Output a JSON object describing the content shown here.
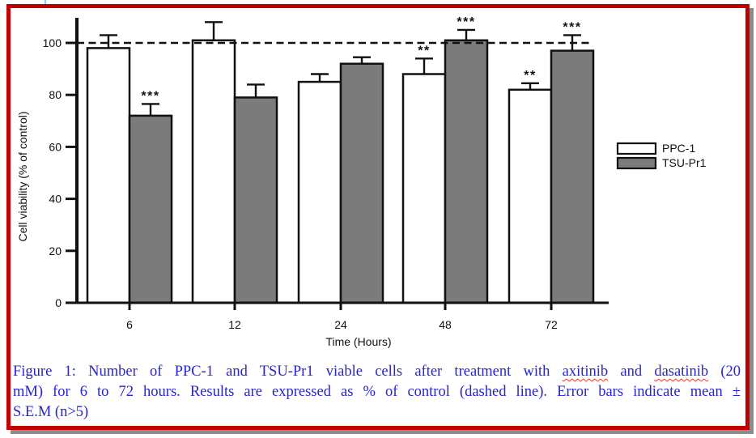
{
  "style": {
    "frame_color": "#c00000",
    "frame_shadow_color": "#8c8c8c",
    "caption_color": "#2824cf",
    "axis_color": "#111111",
    "bar_outline_color": "#111111",
    "ppc1_fill": "#ffffff",
    "tsu_pr1_fill": "#7b7b7b"
  },
  "chart_data": {
    "type": "bar",
    "title": "",
    "xlabel": "Time (Hours)",
    "ylabel": "Cell viability (% of control)",
    "ylim": [
      0,
      110
    ],
    "yticks": [
      0,
      20,
      40,
      60,
      80,
      100
    ],
    "grid": "off",
    "legend_position": "right",
    "categories": [
      "6",
      "12",
      "24",
      "48",
      "72"
    ],
    "series": [
      {
        "name": "PPC-1",
        "fill": "#ffffff",
        "values": [
          98,
          101,
          85,
          88,
          82
        ],
        "errors_upper_sem": [
          5,
          7,
          3,
          6,
          2.5
        ],
        "significance": [
          "",
          "",
          "",
          "**",
          "**"
        ]
      },
      {
        "name": "TSU-Pr1",
        "fill": "#7b7b7b",
        "values": [
          72,
          79,
          92,
          101,
          97
        ],
        "errors_upper_sem": [
          4.5,
          5,
          2.5,
          4,
          6
        ],
        "significance": [
          "***",
          "",
          "",
          "***",
          "***"
        ]
      }
    ],
    "reference_line": {
      "value": 100,
      "style": "dashed",
      "meaning": "control"
    }
  },
  "caption": {
    "figure_label": "Figure 1",
    "line1": {
      "pre": "Figure 1: Number of PPC-1 and TSU-Pr1 viable cells after treatment with ",
      "word1": "axitinib",
      "mid": " and ",
      "word2": "dasatinib",
      "post": " (20"
    },
    "line2": "mM) for 6 to 72 hours. Results are expressed as % of control (dashed line). Error bars indicate mean ±",
    "line3": "S.E.M (n>5)"
  }
}
